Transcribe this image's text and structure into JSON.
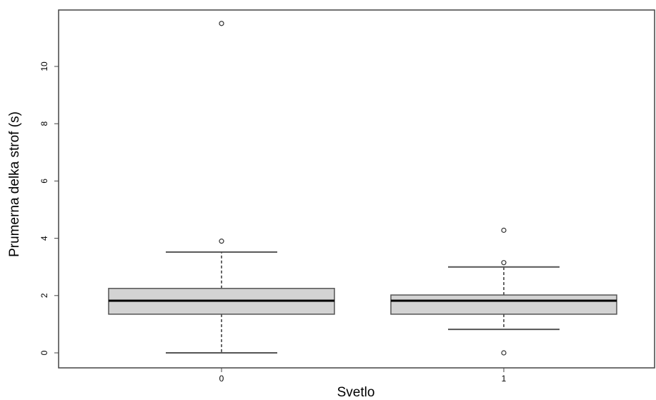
{
  "chart_data": {
    "type": "boxplot",
    "xlabel": "Svetlo",
    "ylabel": "Prumerna delka strof (s)",
    "categories": [
      "0",
      "1"
    ],
    "ylim": [
      -0.5,
      12
    ],
    "yticks": [
      "0",
      "2",
      "4",
      "6",
      "8",
      "10"
    ],
    "grid": false,
    "boxes": [
      {
        "category": "0",
        "whisker_low": 0.0,
        "q1": 1.35,
        "median": 1.82,
        "q3": 2.25,
        "whisker_high": 3.52,
        "outliers": [
          3.9,
          11.5
        ]
      },
      {
        "category": "1",
        "whisker_low": 0.82,
        "q1": 1.35,
        "median": 1.82,
        "q3": 2.02,
        "whisker_high": 3.0,
        "outliers": [
          0.0,
          3.15,
          4.28
        ]
      }
    ],
    "colors": {
      "box_fill": "#d3d3d3",
      "line": "#000000",
      "whisker": "#555555"
    }
  }
}
